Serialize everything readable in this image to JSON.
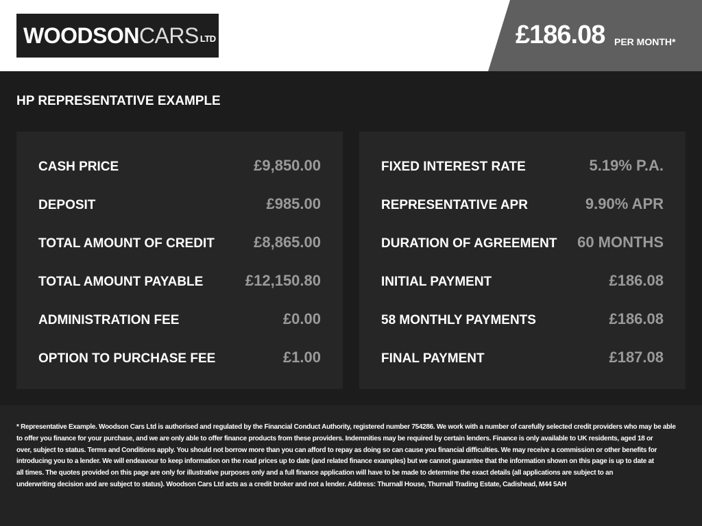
{
  "header": {
    "logo": {
      "main": "WOODSON",
      "light": "CARS",
      "suffix": "LTD"
    },
    "price": "£186.08",
    "price_suffix": "PER MONTH*"
  },
  "section_title": "HP REPRESENTATIVE EXAMPLE",
  "panels": [
    {
      "rows": [
        {
          "label": "CASH PRICE",
          "value": "£9,850.00"
        },
        {
          "label": "DEPOSIT",
          "value": "£985.00"
        },
        {
          "label": "TOTAL AMOUNT OF CREDIT",
          "value": "£8,865.00"
        },
        {
          "label": "TOTAL AMOUNT PAYABLE",
          "value": "£12,150.80"
        },
        {
          "label": "ADMINISTRATION FEE",
          "value": "£0.00"
        },
        {
          "label": "OPTION TO PURCHASE FEE",
          "value": "£1.00"
        }
      ]
    },
    {
      "rows": [
        {
          "label": "FIXED INTEREST RATE",
          "value": "5.19% P.A."
        },
        {
          "label": "REPRESENTATIVE APR",
          "value": "9.90% APR"
        },
        {
          "label": "DURATION OF AGREEMENT",
          "value": "60 MONTHS"
        },
        {
          "label": "INITIAL PAYMENT",
          "value": "£186.08"
        },
        {
          "label": "58 MONTHLY PAYMENTS",
          "value": "£186.08"
        },
        {
          "label": "FINAL PAYMENT",
          "value": "£187.08"
        }
      ]
    }
  ],
  "disclaimer": [
    "* Representative Example. Woodson Cars Ltd is authorised and regulated by the Financial Conduct Authority, registered number 754286. We work with a number of carefully selected credit providers who may be able",
    "to offer you finance for your purchase, and we are only able to offer finance products from these providers. Indemnities may be required by certain lenders. Finance is only available to UK residents, aged 18 or",
    "over, subject to status. Terms and Conditions apply. You should not borrow more than you can afford to repay as doing so can cause you financial difficulties. We may receive a commission or other benefits for",
    "introducing you to a lender. We will endeavour to keep information on the road prices up to date (and related finance examples) but we cannot guarantee that the information shown on this page is up to date at",
    "all times. The quotes provided on this page are only for illustrative purposes only and a full finance application will have to be made to determine the exact details (all applications are subject to an",
    "underwriting decision and are subject to status). Woodson Cars Ltd acts as a credit broker and not a lender. Address: Thurnall House, Thurnall Trading Estate, Cadishead, M44 5AH"
  ]
}
